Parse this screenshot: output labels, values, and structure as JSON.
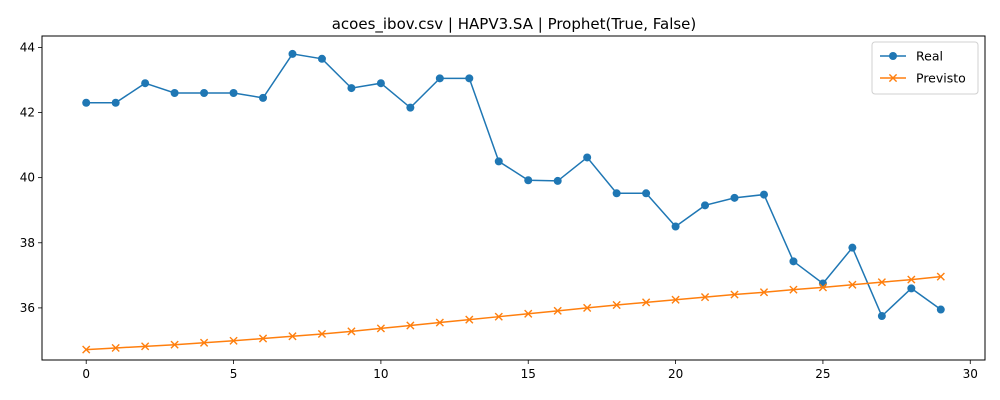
{
  "chart_data": {
    "type": "line",
    "title": "acoes_ibov.csv | HAPV3.SA | Prophet(True, False)",
    "xlabel": "",
    "ylabel": "",
    "xlim": [
      -1.5,
      30.5
    ],
    "ylim": [
      34.4,
      44.35
    ],
    "xticks": [
      0,
      5,
      10,
      15,
      20,
      25,
      30
    ],
    "yticks": [
      36,
      38,
      40,
      42,
      44
    ],
    "grid": false,
    "legend_position": "top-right",
    "x": [
      0,
      1,
      2,
      3,
      4,
      5,
      6,
      7,
      8,
      9,
      10,
      11,
      12,
      13,
      14,
      15,
      16,
      17,
      18,
      19,
      20,
      21,
      22,
      23,
      24,
      25,
      26,
      27,
      28,
      29
    ],
    "series": [
      {
        "name": "Real",
        "marker": "circle",
        "color": "#1f77b4",
        "values": [
          42.3,
          42.3,
          42.9,
          42.6,
          42.6,
          42.6,
          42.45,
          43.8,
          43.65,
          42.75,
          42.9,
          42.15,
          43.05,
          43.05,
          40.5,
          39.92,
          39.9,
          40.62,
          39.52,
          39.52,
          38.5,
          39.15,
          39.38,
          39.48,
          37.43,
          36.75,
          37.85,
          35.75,
          36.6,
          35.95
        ]
      },
      {
        "name": "Previsto",
        "marker": "x",
        "color": "#ff7f0e",
        "values": [
          34.72,
          34.77,
          34.82,
          34.87,
          34.93,
          34.99,
          35.06,
          35.13,
          35.2,
          35.28,
          35.37,
          35.46,
          35.55,
          35.64,
          35.73,
          35.82,
          35.91,
          36.0,
          36.09,
          36.17,
          36.25,
          36.33,
          36.41,
          36.48,
          36.56,
          36.63,
          36.71,
          36.79,
          36.87,
          36.96
        ]
      }
    ]
  }
}
